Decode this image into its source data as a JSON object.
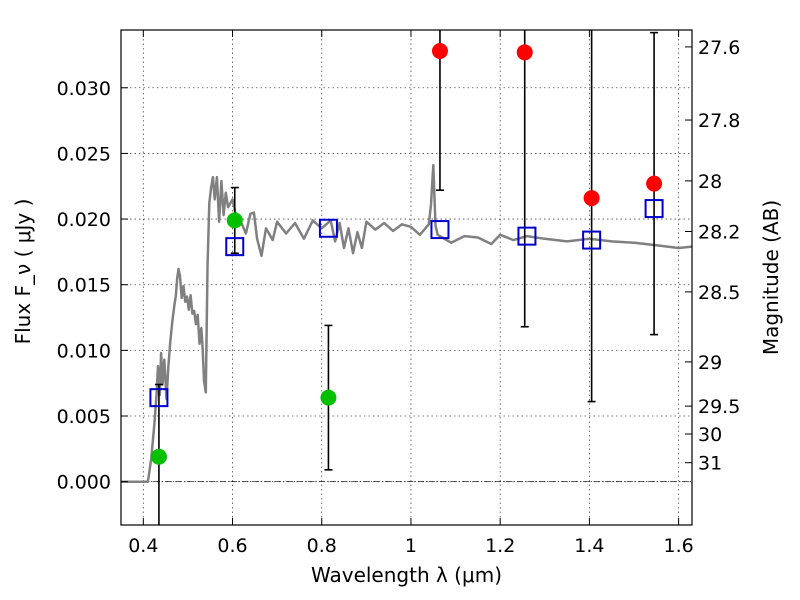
{
  "chart_data": {
    "type": "scatter",
    "xlabel": "Wavelength  λ (μm)",
    "ylabel": "Flux  F_ν  ( μJy )",
    "ylabel_right": "Magnitude (AB)",
    "xlim": [
      0.35,
      1.63
    ],
    "ylim": [
      -0.0033,
      0.0344
    ],
    "grid": true,
    "x_ticks": [
      {
        "value": 0.4,
        "label": "0.4"
      },
      {
        "value": 0.6,
        "label": "0.6"
      },
      {
        "value": 0.8,
        "label": "0.8"
      },
      {
        "value": 1.0,
        "label": "1"
      },
      {
        "value": 1.2,
        "label": "1.2"
      },
      {
        "value": 1.4,
        "label": "1.4"
      },
      {
        "value": 1.6,
        "label": "1.6"
      }
    ],
    "y_ticks": [
      {
        "value": 0.0,
        "label": "0.000"
      },
      {
        "value": 0.005,
        "label": "0.005"
      },
      {
        "value": 0.01,
        "label": "0.010"
      },
      {
        "value": 0.015,
        "label": "0.015"
      },
      {
        "value": 0.02,
        "label": "0.020"
      },
      {
        "value": 0.025,
        "label": "0.025"
      },
      {
        "value": 0.03,
        "label": "0.030"
      }
    ],
    "magnitude_ticks": [
      {
        "mag": 27.6,
        "label": "27.6"
      },
      {
        "mag": 27.8,
        "label": "27.8"
      },
      {
        "mag": 28.0,
        "label": "28"
      },
      {
        "mag": 28.2,
        "label": "28.2"
      },
      {
        "mag": 28.5,
        "label": "28.5"
      },
      {
        "mag": 29.0,
        "label": "29"
      },
      {
        "mag": 29.5,
        "label": "29.5"
      },
      {
        "mag": 30.0,
        "label": "30"
      },
      {
        "mag": 31.0,
        "label": "31"
      }
    ],
    "colors": {
      "model": "#808080",
      "green": "#00c000",
      "red": "#ff0000",
      "squares": "#0000cc",
      "errorbar": "#000000",
      "zero_line": "#000000"
    },
    "model_spectrum": {
      "x": [
        0.35,
        0.41,
        0.412,
        0.418,
        0.425,
        0.43,
        0.433,
        0.437,
        0.44,
        0.443,
        0.447,
        0.452,
        0.456,
        0.46,
        0.465,
        0.47,
        0.473,
        0.476,
        0.479,
        0.482,
        0.486,
        0.49,
        0.494,
        0.498,
        0.502,
        0.506,
        0.51,
        0.514,
        0.518,
        0.522,
        0.526,
        0.53,
        0.533,
        0.536,
        0.54,
        0.544,
        0.548,
        0.552,
        0.556,
        0.56,
        0.565,
        0.57,
        0.575,
        0.58,
        0.585,
        0.59,
        0.6,
        0.61,
        0.62,
        0.63,
        0.64,
        0.648,
        0.655,
        0.665,
        0.675,
        0.69,
        0.7,
        0.72,
        0.74,
        0.76,
        0.78,
        0.8,
        0.82,
        0.83,
        0.84,
        0.85,
        0.86,
        0.87,
        0.88,
        0.89,
        0.9,
        0.92,
        0.94,
        0.96,
        0.98,
        1.0,
        1.02,
        1.04,
        1.045,
        1.05,
        1.055,
        1.06,
        1.07,
        1.09,
        1.12,
        1.15,
        1.18,
        1.2,
        1.23,
        1.26,
        1.3,
        1.35,
        1.4,
        1.45,
        1.5,
        1.55,
        1.6,
        1.63
      ],
      "y": [
        0.0,
        0.0,
        0.0004,
        0.0018,
        0.0045,
        0.0068,
        0.0088,
        0.0066,
        0.0098,
        0.0074,
        0.0093,
        0.0063,
        0.0087,
        0.0105,
        0.0122,
        0.0135,
        0.0142,
        0.0155,
        0.0162,
        0.0157,
        0.014,
        0.0149,
        0.0137,
        0.0141,
        0.0131,
        0.0142,
        0.0128,
        0.013,
        0.012,
        0.0127,
        0.0105,
        0.0117,
        0.0102,
        0.0077,
        0.0068,
        0.0163,
        0.0212,
        0.0224,
        0.0232,
        0.0215,
        0.0232,
        0.0198,
        0.0229,
        0.0203,
        0.022,
        0.0209,
        0.0215,
        0.0199,
        0.0197,
        0.0189,
        0.0204,
        0.0205,
        0.0185,
        0.0172,
        0.0193,
        0.0184,
        0.0198,
        0.0189,
        0.0197,
        0.0185,
        0.0199,
        0.0193,
        0.0199,
        0.0183,
        0.0197,
        0.0178,
        0.0193,
        0.0174,
        0.019,
        0.0178,
        0.0198,
        0.0192,
        0.0197,
        0.0191,
        0.0196,
        0.0194,
        0.0188,
        0.0196,
        0.0211,
        0.0241,
        0.0195,
        0.0188,
        0.0186,
        0.0182,
        0.0187,
        0.0186,
        0.0181,
        0.0188,
        0.0184,
        0.0187,
        0.0185,
        0.0183,
        0.0185,
        0.0183,
        0.0182,
        0.018,
        0.0178,
        0.0179
      ]
    },
    "green_points": [
      {
        "x": 0.435,
        "y": 0.0019,
        "err": 0.0055
      },
      {
        "x": 0.605,
        "y": 0.0199,
        "err": 0.0025
      },
      {
        "x": 0.815,
        "y": 0.0064,
        "err": 0.0055
      }
    ],
    "red_points": [
      {
        "x": 1.065,
        "y": 0.0328,
        "err": 0.0106
      },
      {
        "x": 1.255,
        "y": 0.0327,
        "err": 0.0209
      },
      {
        "x": 1.405,
        "y": 0.0216,
        "err": 0.0155
      },
      {
        "x": 1.545,
        "y": 0.0227,
        "err": 0.0115
      }
    ],
    "model_squares": [
      {
        "x": 0.435,
        "y": 0.0064
      },
      {
        "x": 0.605,
        "y": 0.0179
      },
      {
        "x": 0.815,
        "y": 0.0193
      },
      {
        "x": 1.065,
        "y": 0.0192
      },
      {
        "x": 1.26,
        "y": 0.0187
      },
      {
        "x": 1.405,
        "y": 0.0184
      },
      {
        "x": 1.545,
        "y": 0.0208
      }
    ]
  }
}
